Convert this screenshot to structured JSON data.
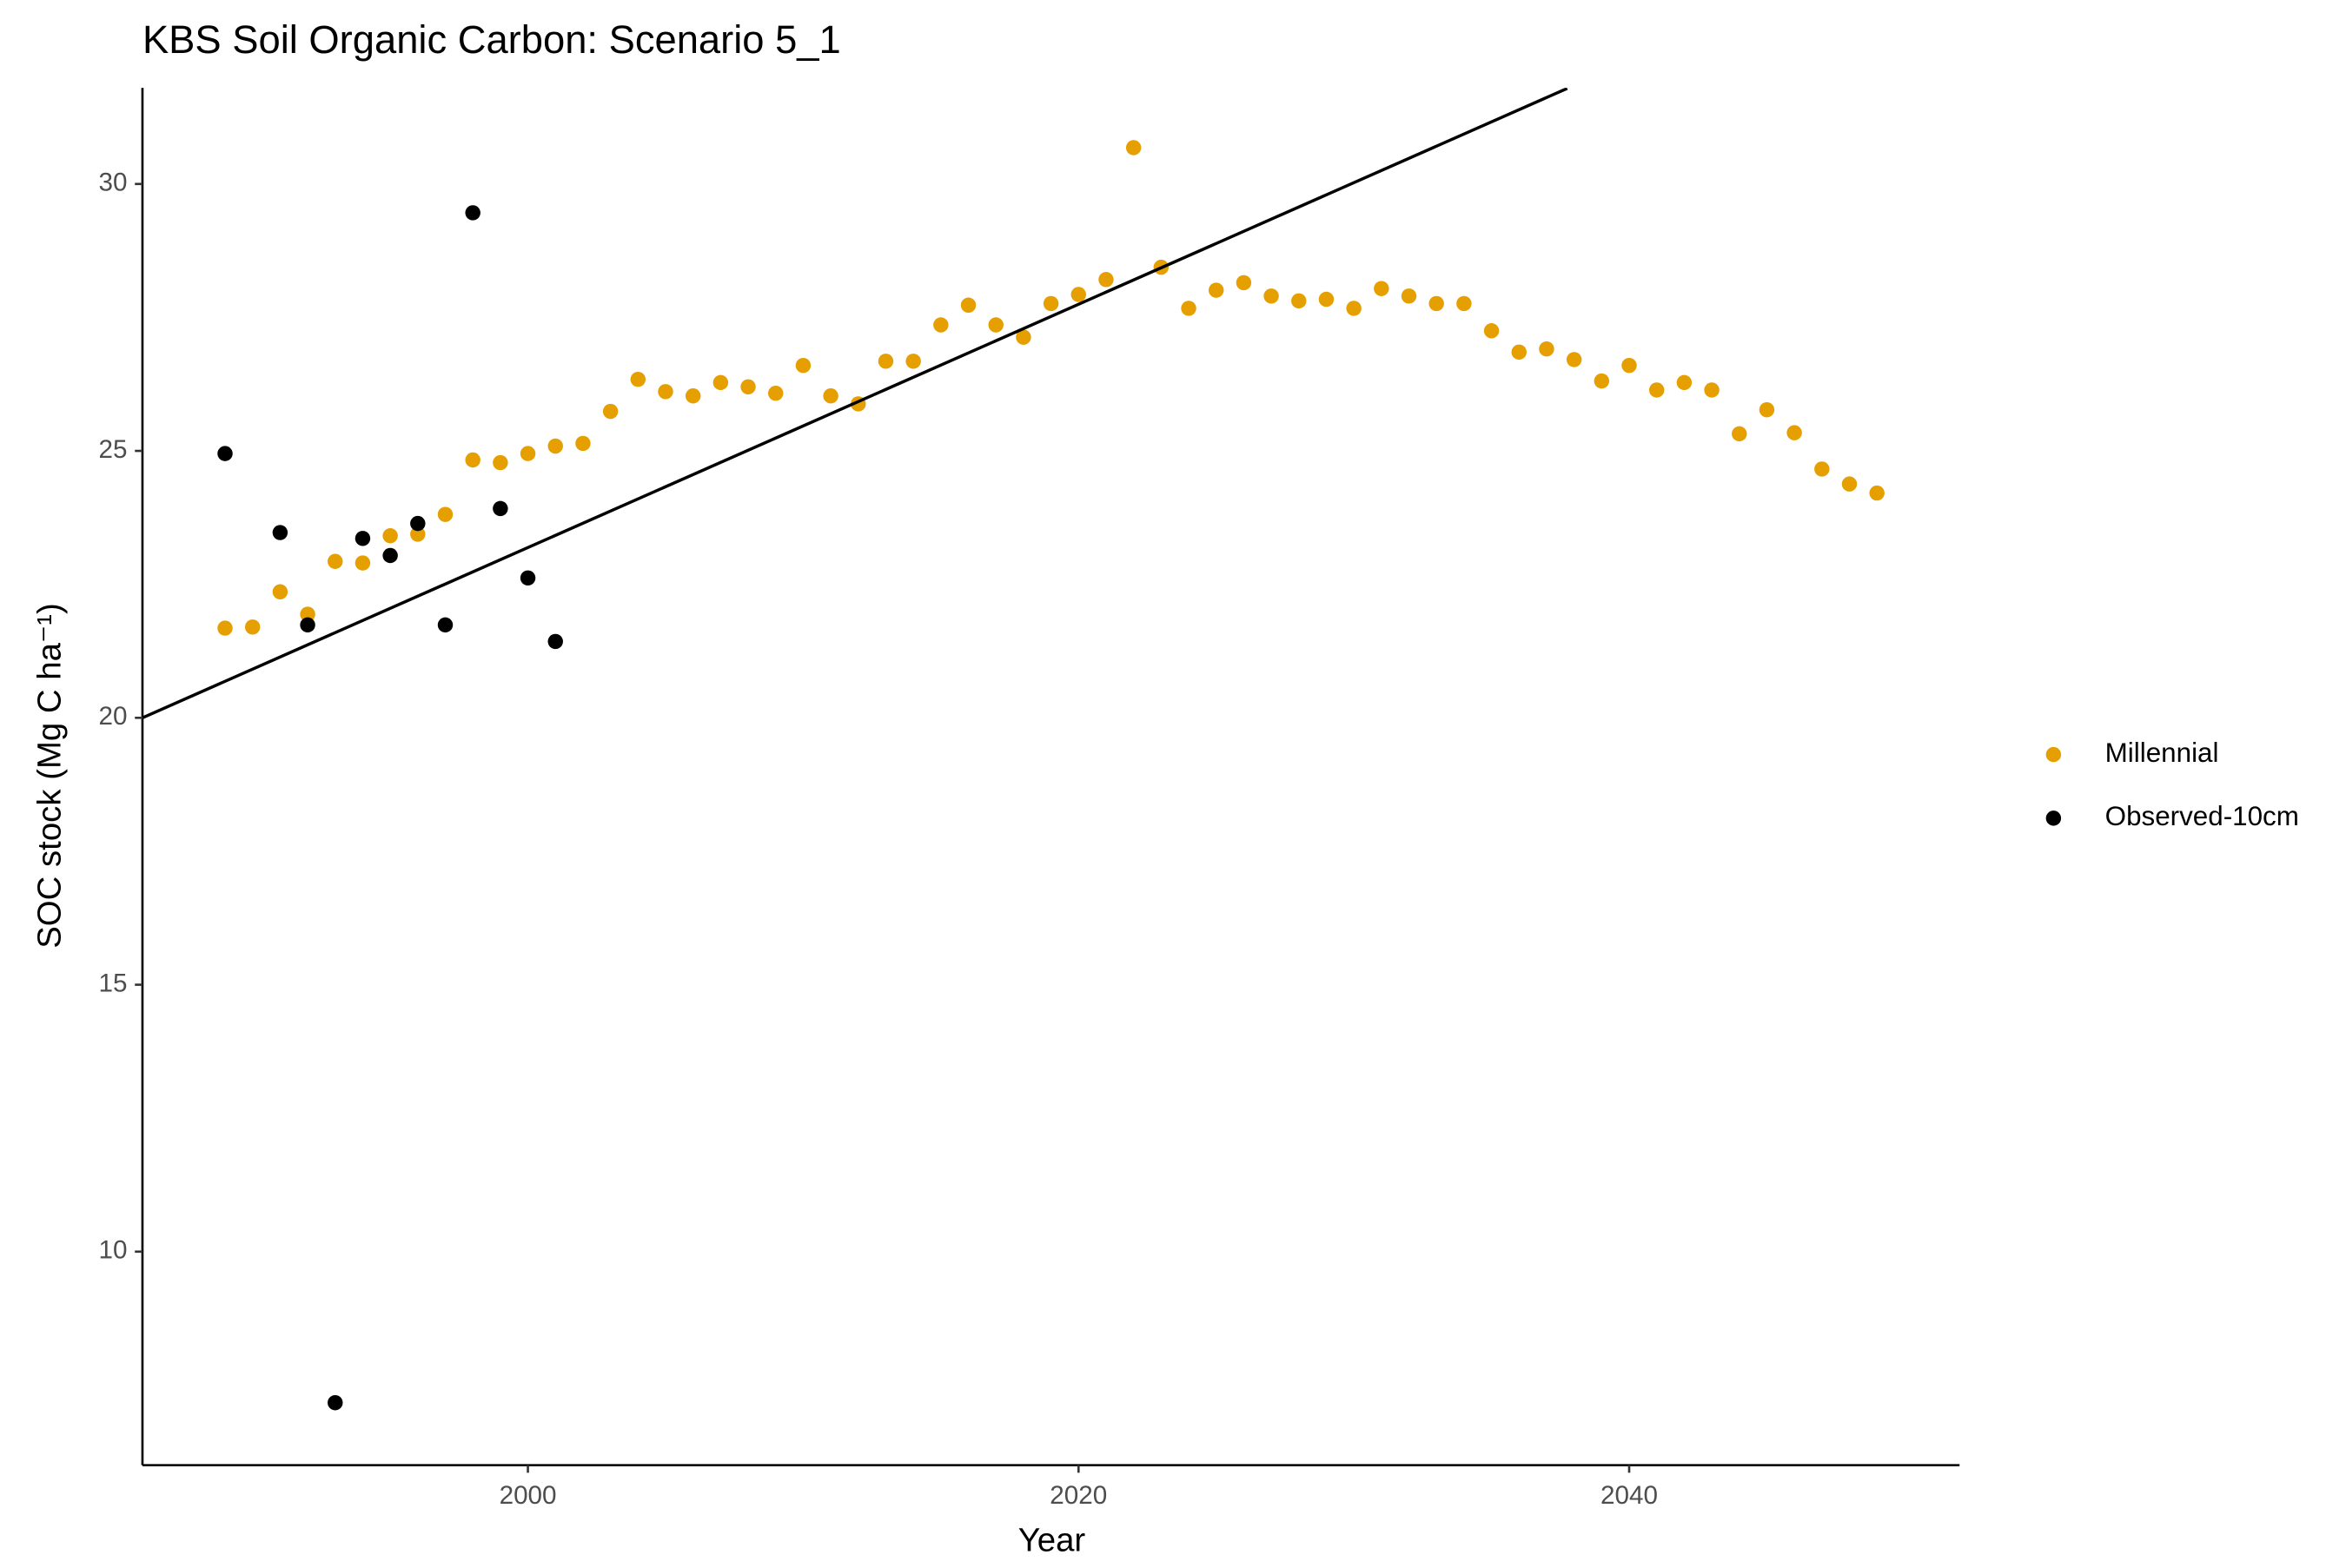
{
  "chart_data": {
    "type": "scatter",
    "title": "KBS Soil Organic Carbon: Scenario  5_1",
    "x_label": "Year",
    "y_label": "SOC stock (Mg C ha⁻¹)",
    "xlim": [
      1986,
      2052
    ],
    "xticks": [
      2000,
      2020,
      2040
    ],
    "ylim": [
      6.0,
      31.8
    ],
    "yticks": [
      10,
      15,
      20,
      25,
      30
    ],
    "grid": false,
    "legend": "right",
    "series": [
      {
        "name": "Millennial",
        "color": "#E69F00",
        "x": [
          1989,
          1990,
          1991,
          1992,
          1993,
          1994,
          1995,
          1996,
          1997,
          1998,
          1999,
          2000,
          2001,
          2002,
          2003,
          2004,
          2005,
          2006,
          2007,
          2008,
          2009,
          2010,
          2011,
          2012,
          2013,
          2014,
          2015,
          2016,
          2017,
          2018,
          2019,
          2020,
          2021,
          2022,
          2023,
          2024,
          2025,
          2026,
          2027,
          2028,
          2029,
          2030,
          2031,
          2032,
          2033,
          2034,
          2035,
          2036,
          2037,
          2038,
          2039,
          2040,
          2041,
          2042,
          2043,
          2044,
          2045,
          2046,
          2047,
          2048,
          2049
        ],
        "values": [
          21.68,
          21.7,
          22.36,
          21.94,
          22.93,
          22.9,
          23.41,
          23.44,
          23.81,
          24.83,
          24.78,
          24.95,
          25.09,
          25.14,
          25.74,
          26.34,
          26.11,
          26.03,
          26.28,
          26.2,
          26.08,
          26.6,
          26.03,
          25.88,
          26.68,
          26.68,
          27.36,
          27.73,
          27.36,
          27.13,
          27.76,
          27.93,
          28.21,
          30.68,
          28.44,
          27.67,
          28.01,
          28.15,
          27.9,
          27.81,
          27.84,
          27.67,
          28.04,
          27.9,
          27.76,
          27.76,
          27.25,
          26.85,
          26.91,
          26.71,
          26.31,
          26.6,
          26.14,
          26.28,
          26.14,
          25.32,
          25.77,
          25.34,
          24.66,
          24.38,
          24.21
        ]
      },
      {
        "name": "Observed-10cm",
        "color": "#000000",
        "x": [
          1989,
          1991,
          1992,
          1993,
          1994,
          1995,
          1996,
          1997,
          1998,
          1999,
          2000,
          2001
        ],
        "values": [
          24.95,
          23.47,
          21.74,
          7.17,
          23.36,
          23.04,
          23.64,
          21.74,
          29.46,
          23.92,
          22.62,
          21.43
        ]
      }
    ],
    "trend_line": {
      "color": "#000000",
      "x": [
        1986,
        2037.75
      ],
      "y": [
        20,
        31.79
      ]
    }
  }
}
